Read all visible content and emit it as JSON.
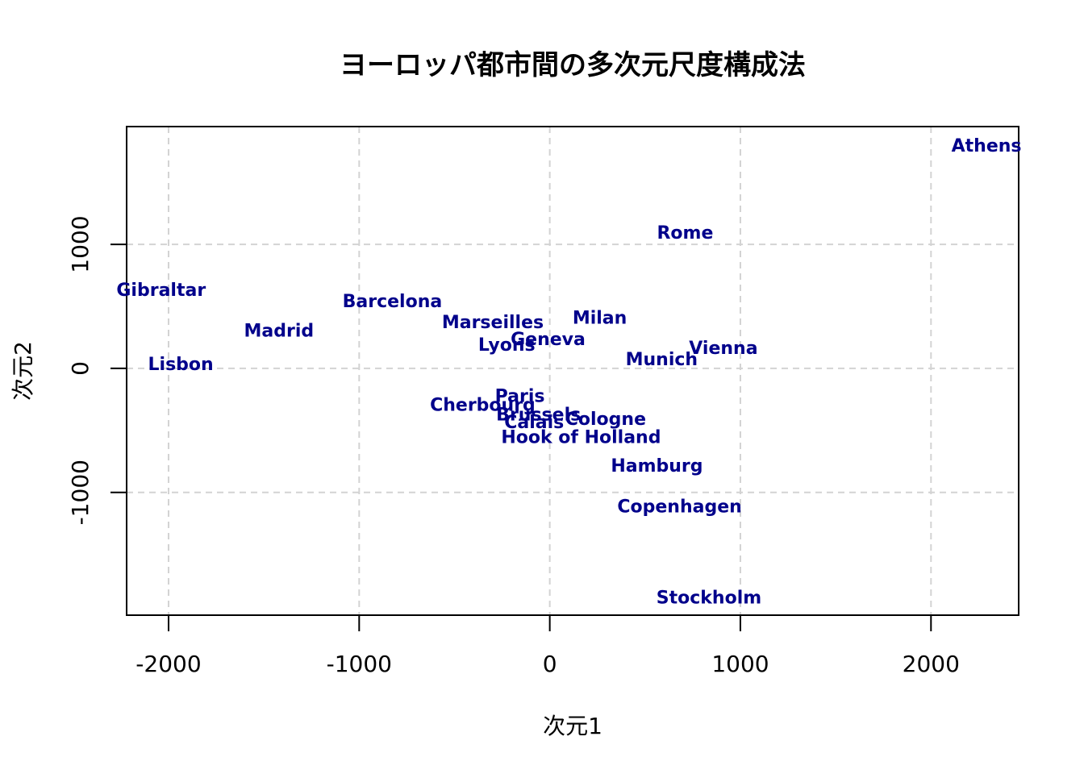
{
  "chart_data": {
    "type": "scatter",
    "title": "ヨーロッパ都市間の多次元尺度構成法",
    "xlabel": "次元1",
    "ylabel": "次元2",
    "xlim": [
      -2220,
      2460
    ],
    "ylim": [
      -1990,
      1950
    ],
    "xticks": [
      -2000,
      -1000,
      0,
      1000,
      2000
    ],
    "yticks": [
      -1000,
      0,
      1000
    ],
    "xtick_labels": [
      "-2000",
      "-1000",
      "0",
      "1000",
      "2000"
    ],
    "ytick_labels": [
      "-1000",
      "0",
      "1000"
    ],
    "grid": true,
    "label_color": "#00008B",
    "points": [
      {
        "label": "Athens",
        "x": 2291,
        "y": 1799
      },
      {
        "label": "Barcelona",
        "x": -826,
        "y": 546
      },
      {
        "label": "Brussels",
        "x": -59,
        "y": -367
      },
      {
        "label": "Calais",
        "x": -82,
        "y": -429
      },
      {
        "label": "Cherbourg",
        "x": -352,
        "y": -291
      },
      {
        "label": "Cologne",
        "x": 293,
        "y": -405
      },
      {
        "label": "Copenhagen",
        "x": 681,
        "y": -1109
      },
      {
        "label": "Geneva",
        "x": -9,
        "y": 240
      },
      {
        "label": "Gibraltar",
        "x": -2039,
        "y": 636
      },
      {
        "label": "Hamburg",
        "x": 562,
        "y": -780
      },
      {
        "label": "Hook of Holland",
        "x": 164,
        "y": -549
      },
      {
        "label": "Lisbon",
        "x": -1936,
        "y": 39
      },
      {
        "label": "Lyons",
        "x": -226,
        "y": 194
      },
      {
        "label": "Madrid",
        "x": -1421,
        "y": 308
      },
      {
        "label": "Marseilles",
        "x": -299,
        "y": 377
      },
      {
        "label": "Milan",
        "x": 262,
        "y": 411
      },
      {
        "label": "Munich",
        "x": 587,
        "y": 77
      },
      {
        "label": "Paris",
        "x": -157,
        "y": -219
      },
      {
        "label": "Rome",
        "x": 710,
        "y": 1097
      },
      {
        "label": "Stockholm",
        "x": 835,
        "y": -1845
      },
      {
        "label": "Vienna",
        "x": 911,
        "y": 170
      }
    ]
  }
}
